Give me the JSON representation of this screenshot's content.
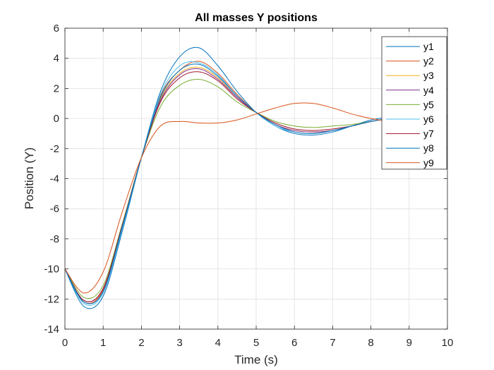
{
  "chart_data": {
    "type": "line",
    "title": "All masses Y positions",
    "xlabel": "Time (s)",
    "ylabel": "Position (Y)",
    "xlim": [
      0,
      10
    ],
    "ylim": [
      -14,
      6
    ],
    "xticks": [
      0,
      1,
      2,
      3,
      4,
      5,
      6,
      7,
      8,
      9,
      10
    ],
    "yticks": [
      -14,
      -12,
      -10,
      -8,
      -6,
      -4,
      -2,
      0,
      2,
      4,
      6
    ],
    "grid": true,
    "legend_position": "top-right",
    "x": [
      0,
      0.5,
      1,
      1.5,
      2,
      2.5,
      3,
      3.5,
      4,
      4.5,
      5,
      5.5,
      6,
      6.5,
      7,
      7.5,
      8,
      8.5,
      9,
      9.5,
      10
    ],
    "series": [
      {
        "name": "y1",
        "color": "#0072BD",
        "values": [
          -10,
          -12.5,
          -11.8,
          -7.5,
          -2.6,
          1.8,
          4.1,
          4.7,
          3.5,
          1.8,
          0.4,
          -0.5,
          -1.0,
          -1.1,
          -0.9,
          -0.5,
          -0.1,
          0.1,
          0.2,
          0.2,
          0.2
        ]
      },
      {
        "name": "y2",
        "color": "#D95319",
        "values": [
          -10,
          -12.2,
          -11.4,
          -7.2,
          -2.6,
          1.5,
          3.2,
          3.8,
          3.0,
          1.6,
          0.4,
          -0.4,
          -0.8,
          -0.9,
          -0.8,
          -0.5,
          -0.2,
          0.0,
          0.1,
          0.2,
          0.2
        ]
      },
      {
        "name": "y3",
        "color": "#EDB120",
        "values": [
          -10,
          -12.1,
          -11.3,
          -7.1,
          -2.6,
          1.3,
          3.0,
          3.4,
          2.7,
          1.4,
          0.4,
          -0.4,
          -0.8,
          -0.9,
          -0.8,
          -0.5,
          -0.2,
          0.0,
          0.1,
          0.1,
          0.2
        ]
      },
      {
        "name": "y4",
        "color": "#7E2F8E",
        "values": [
          -10,
          -12.1,
          -11.3,
          -7.1,
          -2.6,
          1.2,
          2.9,
          3.3,
          2.6,
          1.4,
          0.4,
          -0.4,
          -0.8,
          -0.9,
          -0.8,
          -0.5,
          -0.2,
          0.0,
          0.1,
          0.1,
          0.2
        ]
      },
      {
        "name": "y5",
        "color": "#77AC30",
        "values": [
          -10,
          -11.9,
          -11.1,
          -7.0,
          -2.6,
          0.8,
          2.2,
          2.6,
          2.1,
          1.1,
          0.4,
          -0.2,
          -0.5,
          -0.6,
          -0.5,
          -0.4,
          -0.2,
          0.0,
          0.1,
          0.1,
          0.1
        ]
      },
      {
        "name": "y6",
        "color": "#4DBEEE",
        "values": [
          -10,
          -12.3,
          -11.6,
          -7.3,
          -2.6,
          1.6,
          3.5,
          3.7,
          2.9,
          1.5,
          0.4,
          -0.5,
          -0.9,
          -1.0,
          -0.8,
          -0.5,
          -0.2,
          0.0,
          0.1,
          0.2,
          0.2
        ]
      },
      {
        "name": "y7",
        "color": "#A2142F",
        "values": [
          -10,
          -12.1,
          -11.3,
          -7.1,
          -2.6,
          1.1,
          2.7,
          3.1,
          2.5,
          1.3,
          0.4,
          -0.3,
          -0.7,
          -0.8,
          -0.7,
          -0.5,
          -0.2,
          0.0,
          0.1,
          0.1,
          0.2
        ]
      },
      {
        "name": "y8",
        "color": "#0072BD",
        "values": [
          -10,
          -12.2,
          -11.5,
          -7.2,
          -2.6,
          1.4,
          3.2,
          3.6,
          2.8,
          1.5,
          0.4,
          -0.4,
          -0.9,
          -1.0,
          -0.8,
          -0.5,
          -0.2,
          0.0,
          0.1,
          0.2,
          0.1
        ]
      },
      {
        "name": "y9",
        "color": "#D95319",
        "values": [
          -10,
          -11.6,
          -10.2,
          -6.2,
          -2.6,
          -0.5,
          -0.2,
          -0.3,
          -0.3,
          -0.1,
          0.3,
          0.7,
          1.0,
          1.0,
          0.7,
          0.3,
          0.0,
          -0.2,
          -0.3,
          -0.2,
          -0.4
        ]
      }
    ]
  }
}
